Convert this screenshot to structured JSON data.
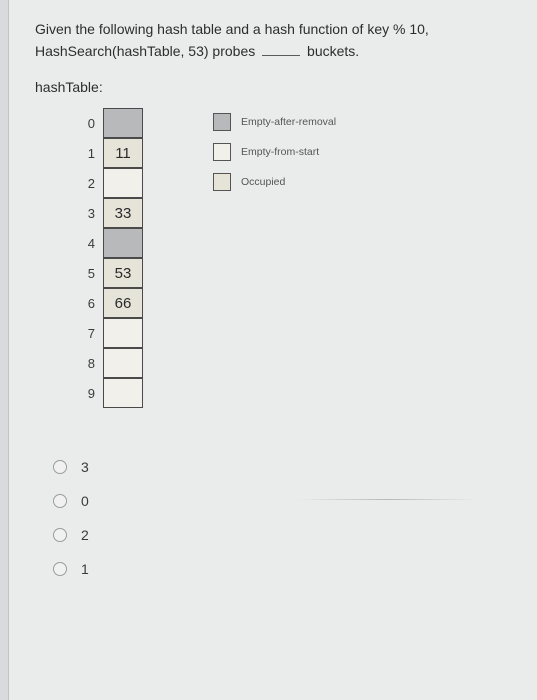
{
  "question": {
    "line1": "Given the following hash table and a hash function of key % 10,",
    "line2a": "HashSearch(hashTable, 53) probes",
    "line2b": "buckets."
  },
  "table_label": "hashTable:",
  "hash_table": {
    "rows": [
      {
        "index": "0",
        "value": "",
        "state": "empty-after"
      },
      {
        "index": "1",
        "value": "11",
        "state": "occupied"
      },
      {
        "index": "2",
        "value": "",
        "state": "empty-start"
      },
      {
        "index": "3",
        "value": "33",
        "state": "occupied"
      },
      {
        "index": "4",
        "value": "",
        "state": "empty-after"
      },
      {
        "index": "5",
        "value": "53",
        "state": "occupied"
      },
      {
        "index": "6",
        "value": "66",
        "state": "occupied"
      },
      {
        "index": "7",
        "value": "",
        "state": "empty-start"
      },
      {
        "index": "8",
        "value": "",
        "state": "empty-start"
      },
      {
        "index": "9",
        "value": "",
        "state": "empty-start"
      }
    ]
  },
  "legend": {
    "items": [
      {
        "label": "Empty-after-removal",
        "color": "#b8b9ba"
      },
      {
        "label": "Empty-from-start",
        "color": "#f2f0ea"
      },
      {
        "label": "Occupied",
        "color": "#e6e3d9"
      }
    ]
  },
  "answers": {
    "options": [
      {
        "label": "3"
      },
      {
        "label": "0"
      },
      {
        "label": "2"
      },
      {
        "label": "1"
      }
    ]
  },
  "colors": {
    "page_bg": "#eaeceb",
    "outer_bg": "#d8dadb",
    "cell_border": "#4a4a4a",
    "text": "#2d2d2d"
  }
}
